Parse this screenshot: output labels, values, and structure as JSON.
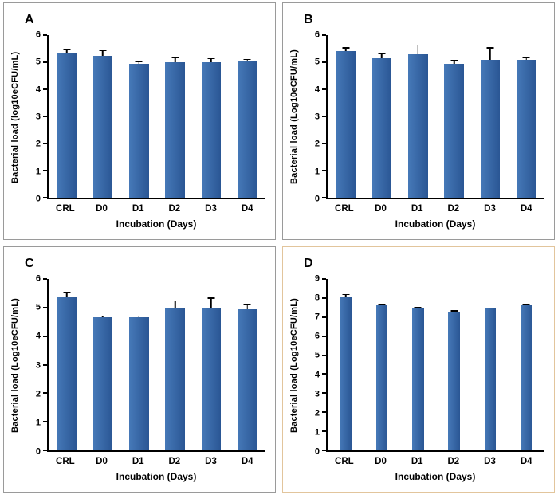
{
  "figure": {
    "background": "#ffffff",
    "axis_color": "#000000"
  },
  "chart_data": [
    {
      "panel_label": "A",
      "type": "bar",
      "categories": [
        "CRL",
        "D0",
        "D1",
        "D2",
        "D3",
        "D4"
      ],
      "values": [
        5.35,
        5.25,
        4.95,
        5.0,
        5.0,
        5.05
      ],
      "errors": [
        0.15,
        0.2,
        0.1,
        0.2,
        0.15,
        0.07
      ],
      "title": "",
      "xlabel": "Incubation (Days)",
      "ylabel": "Bacterial load (log10eCFU/mL)",
      "ylim": [
        0,
        6
      ],
      "ytick_step": 1,
      "grid": false,
      "legend": "none",
      "bar_color": "#4679b8",
      "bar_color_dark": "#2a5694",
      "bar_width_pct": 55,
      "border_color": "#9a9a9a"
    },
    {
      "panel_label": "B",
      "type": "bar",
      "categories": [
        "CRL",
        "D0",
        "D1",
        "D2",
        "D3",
        "D4"
      ],
      "values": [
        5.4,
        5.15,
        5.3,
        4.95,
        5.1,
        5.1
      ],
      "errors": [
        0.15,
        0.2,
        0.35,
        0.15,
        0.45,
        0.08
      ],
      "title": "",
      "xlabel": "Incubation (Days)",
      "ylabel": "Bacterial load (Log10eCFU/mL)",
      "ylim": [
        0,
        6
      ],
      "ytick_step": 1,
      "grid": false,
      "legend": "none",
      "bar_color": "#4679b8",
      "bar_color_dark": "#2a5694",
      "bar_width_pct": 55,
      "border_color": "#9a9a9a"
    },
    {
      "panel_label": "C",
      "type": "bar",
      "categories": [
        "CRL",
        "D0",
        "D1",
        "D2",
        "D3",
        "D4"
      ],
      "values": [
        5.4,
        4.65,
        4.65,
        5.0,
        5.0,
        4.95
      ],
      "errors": [
        0.15,
        0.08,
        0.07,
        0.25,
        0.35,
        0.18
      ],
      "title": "",
      "xlabel": "Incubation (Days)",
      "ylabel": "Bacterial load (Log10eCFU/mL)",
      "ylim": [
        0,
        6
      ],
      "ytick_step": 1,
      "grid": false,
      "legend": "none",
      "bar_color": "#4679b8",
      "bar_color_dark": "#2a5694",
      "bar_width_pct": 55,
      "border_color": "#9a9a9a"
    },
    {
      "panel_label": "D",
      "type": "bar",
      "categories": [
        "CRL",
        "D0",
        "D1",
        "D2",
        "D3",
        "D4"
      ],
      "values": [
        8.1,
        7.6,
        7.5,
        7.3,
        7.45,
        7.6
      ],
      "errors": [
        0.12,
        0.07,
        0.05,
        0.05,
        0.05,
        0.07
      ],
      "title": "",
      "xlabel": "Incubation (Days)",
      "ylabel": "Bacterial load (Log10eCFU/mL)",
      "ylim": [
        0,
        9
      ],
      "ytick_step": 1,
      "grid": false,
      "legend": "none",
      "bar_color": "#4679b8",
      "bar_color_dark": "#2a5694",
      "bar_width_pct": 32,
      "border_color": "#e2c59c"
    }
  ]
}
